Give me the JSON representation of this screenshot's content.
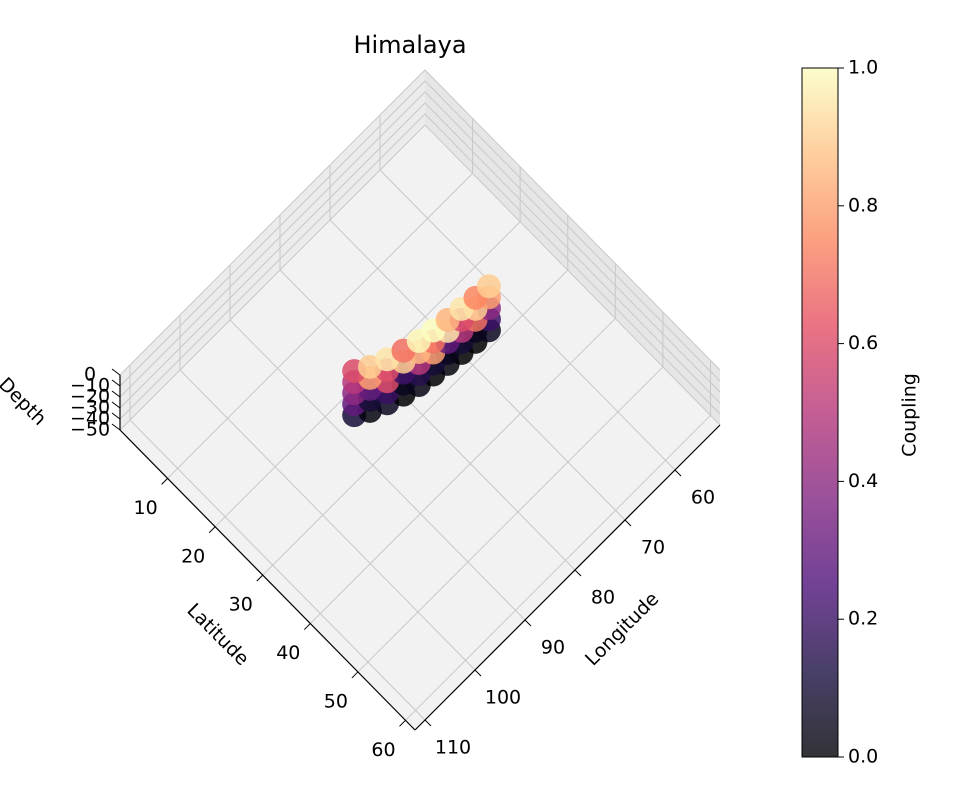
{
  "chart_data": {
    "type": "scatter3d",
    "title": "Himalaya",
    "xlabel": "Longitude",
    "ylabel": "Latitude",
    "zlabel": "Depth",
    "colorbar_label": "Coupling",
    "colormap": "magma",
    "xlim": [
      51,
      112
    ],
    "xticks": [
      60,
      70,
      80,
      90,
      100,
      110
    ],
    "ylim": [
      0,
      62
    ],
    "yticks": [
      10,
      20,
      30,
      40,
      50,
      60
    ],
    "zlim": [
      -50,
      0
    ],
    "zticks": [
      {
        "value": 0,
        "label": "0"
      },
      {
        "value": -10,
        "label": "−10"
      },
      {
        "value": -20,
        "label": "−20"
      },
      {
        "value": -30,
        "label": "−30"
      },
      {
        "value": -40,
        "label": "−40"
      },
      {
        "value": -50,
        "label": "−50"
      }
    ],
    "clim": [
      0,
      1
    ],
    "cticks": [
      {
        "value": 0,
        "label": "0.0"
      },
      {
        "value": 0.2,
        "label": "0.2"
      },
      {
        "value": 0.4,
        "label": "0.4"
      },
      {
        "value": 0.6,
        "label": "0.6"
      },
      {
        "value": 0.8,
        "label": "0.8"
      },
      {
        "value": 1,
        "label": "1.0"
      }
    ],
    "series": [
      {
        "x": [
          88,
          86,
          83.5,
          81,
          78.5,
          76,
          73.5,
          71,
          68.5,
          66,
          88,
          86,
          83.5,
          81,
          78.5,
          76,
          73.5,
          71,
          68.5,
          66,
          88,
          86,
          83.5,
          81,
          78.5,
          76,
          73.5,
          71,
          68.5,
          66,
          88,
          86,
          83.5,
          81,
          78.5,
          76,
          73.5,
          71,
          68.5,
          66,
          88,
          86,
          83.5,
          81,
          78.5,
          76,
          73.5,
          71,
          68.5,
          66
        ],
        "y": [
          24,
          25.2,
          26.2,
          27,
          27.6,
          28,
          28.4,
          28.7,
          29,
          29.2,
          24,
          25.2,
          26.2,
          27,
          27.6,
          28,
          28.4,
          28.7,
          29,
          29.2,
          24,
          25.2,
          26.2,
          27,
          27.6,
          28,
          28.4,
          28.7,
          29,
          29.2,
          24,
          25.2,
          26.2,
          27,
          27.6,
          28,
          28.4,
          28.7,
          29,
          29.2,
          24,
          25.2,
          26.2,
          27,
          27.6,
          28,
          28.4,
          28.7,
          29,
          29.2
        ],
        "z": [
          0,
          0,
          0,
          0,
          0,
          0,
          0,
          0,
          0,
          0,
          -10,
          -10,
          -10,
          -10,
          -10,
          -10,
          -10,
          -10,
          -10,
          -10,
          -20,
          -20,
          -20,
          -20,
          -20,
          -20,
          -20,
          -20,
          -20,
          -20,
          -30,
          -30,
          -30,
          -30,
          -30,
          -30,
          -30,
          -30,
          -30,
          -30,
          -40,
          -40,
          -40,
          -40,
          -40,
          -40,
          -40,
          -40,
          -40,
          -40
        ],
        "values": [
          0.6,
          0.9,
          0.95,
          0.7,
          0.98,
          1.0,
          0.85,
          0.95,
          0.75,
          0.9,
          0.5,
          0.8,
          0.6,
          0.9,
          0.85,
          0.7,
          0.95,
          0.6,
          0.9,
          0.8,
          0.4,
          0.3,
          0.6,
          0.2,
          0.5,
          0.8,
          0.3,
          0.5,
          0.7,
          0.4,
          0.3,
          0.1,
          0.2,
          0.05,
          0.15,
          0.1,
          0.05,
          0.1,
          0.05,
          0.2,
          0.1,
          0.02,
          0.05,
          0.0,
          0.03,
          0.0,
          0.02,
          0.0,
          0.0,
          0.05
        ]
      }
    ]
  }
}
